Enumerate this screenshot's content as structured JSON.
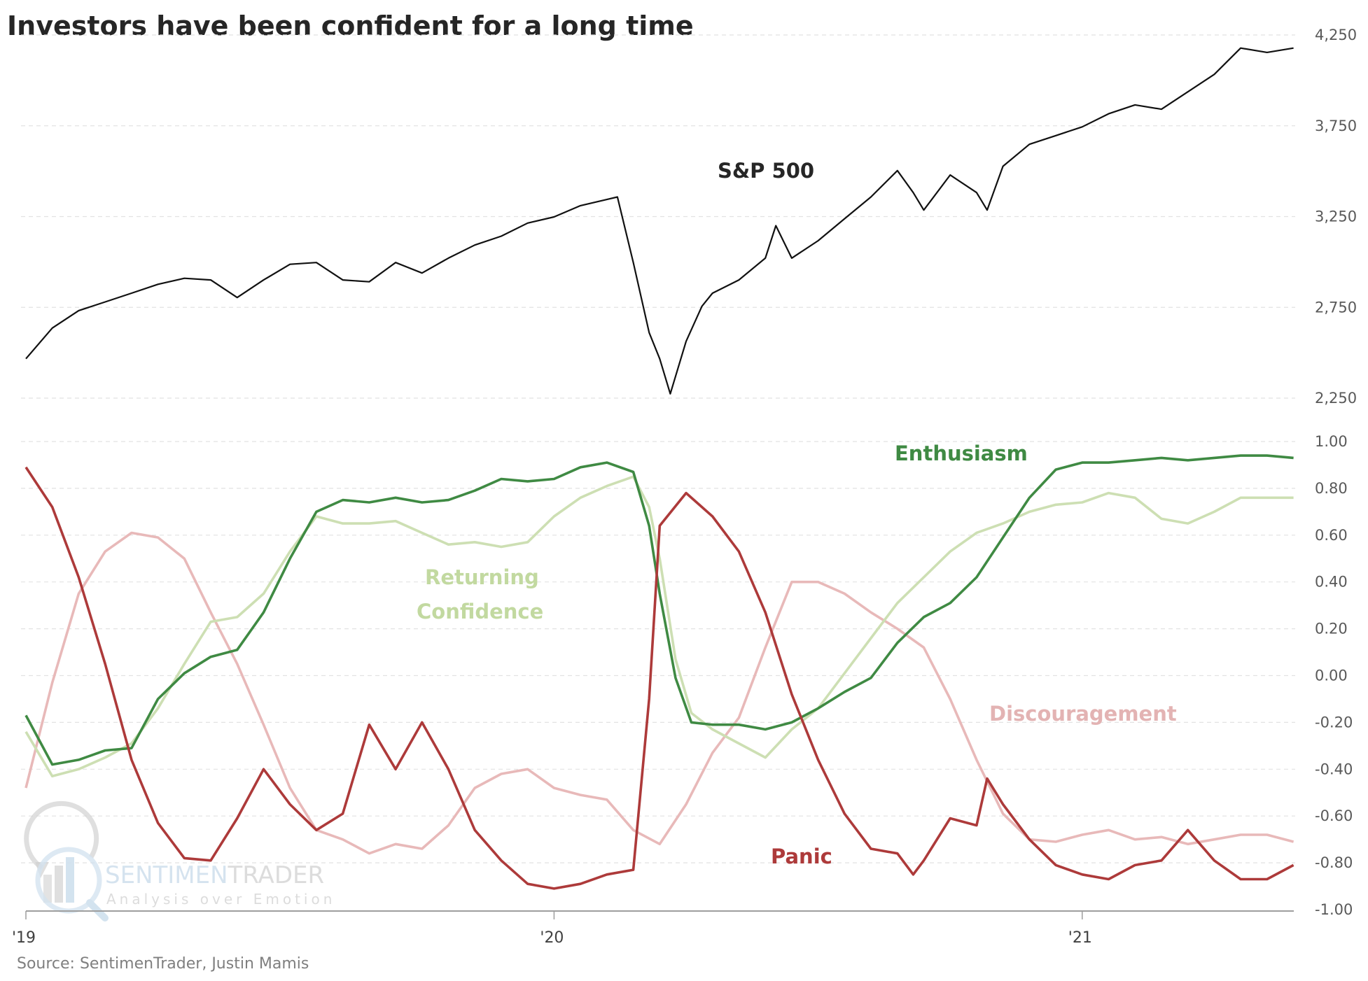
{
  "chart_data": [
    {
      "type": "line",
      "title": "Investors have been confident for a long time",
      "panel": "top",
      "ylabel": "",
      "y_axis_side": "right",
      "ylim": [
        2250,
        4250
      ],
      "yticks": [
        4250,
        3750,
        3250,
        2750,
        2250
      ],
      "ytick_labels": [
        "4,250",
        "3,750",
        "3,250",
        "2,750",
        "2,250"
      ],
      "grid": true,
      "x_unit": "years since Jan 2019",
      "series": [
        {
          "name": "S&P 500",
          "label": "S&P 500",
          "color": "#111111",
          "points": [
            [
              0,
              2467
            ],
            [
              0.05,
              2636
            ],
            [
              0.1,
              2732
            ],
            [
              0.15,
              2780
            ],
            [
              0.2,
              2828
            ],
            [
              0.25,
              2877
            ],
            [
              0.3,
              2910
            ],
            [
              0.35,
              2901
            ],
            [
              0.4,
              2804
            ],
            [
              0.45,
              2901
            ],
            [
              0.5,
              2987
            ],
            [
              0.55,
              2997
            ],
            [
              0.6,
              2901
            ],
            [
              0.65,
              2891
            ],
            [
              0.7,
              2997
            ],
            [
              0.75,
              2939
            ],
            [
              0.8,
              3021
            ],
            [
              0.85,
              3093
            ],
            [
              0.9,
              3142
            ],
            [
              0.95,
              3214
            ],
            [
              1.0,
              3248
            ],
            [
              1.05,
              3310
            ],
            [
              1.1,
              3344
            ],
            [
              1.12,
              3358
            ],
            [
              1.15,
              2997
            ],
            [
              1.18,
              2611
            ],
            [
              1.2,
              2467
            ],
            [
              1.22,
              2274
            ],
            [
              1.25,
              2563
            ],
            [
              1.28,
              2756
            ],
            [
              1.3,
              2828
            ],
            [
              1.35,
              2901
            ],
            [
              1.4,
              3021
            ],
            [
              1.42,
              3200
            ],
            [
              1.45,
              3021
            ],
            [
              1.5,
              3117
            ],
            [
              1.55,
              3238
            ],
            [
              1.6,
              3358
            ],
            [
              1.65,
              3503
            ],
            [
              1.68,
              3382
            ],
            [
              1.7,
              3286
            ],
            [
              1.75,
              3479
            ],
            [
              1.8,
              3382
            ],
            [
              1.82,
              3286
            ],
            [
              1.85,
              3527
            ],
            [
              1.9,
              3648
            ],
            [
              1.95,
              3696
            ],
            [
              2.0,
              3744
            ],
            [
              2.05,
              3816
            ],
            [
              2.1,
              3865
            ],
            [
              2.15,
              3841
            ],
            [
              2.2,
              3937
            ],
            [
              2.25,
              4033
            ],
            [
              2.3,
              4178
            ],
            [
              2.35,
              4154
            ],
            [
              2.4,
              4178
            ]
          ]
        }
      ]
    },
    {
      "type": "line",
      "panel": "bottom",
      "y_axis_side": "right",
      "ylim": [
        -1.0,
        1.0
      ],
      "yticks": [
        1.0,
        0.8,
        0.6,
        0.4,
        0.2,
        0.0,
        -0.2,
        -0.4,
        -0.6,
        -0.8,
        -1.0
      ],
      "ytick_labels": [
        "1.00",
        "0.80",
        "0.60",
        "0.40",
        "0.20",
        "0.00",
        "-0.20",
        "-0.40",
        "-0.60",
        "-0.80",
        "-1.00"
      ],
      "grid": true,
      "x_unit": "years since Jan 2019",
      "xlim": [
        0,
        2.4
      ],
      "xticks": [
        0,
        1,
        2
      ],
      "xtick_labels": [
        "'19",
        "'20",
        "'21"
      ],
      "series": [
        {
          "name": "Enthusiasm",
          "label": "Enthusiasm",
          "color": "#3f8a43",
          "points": [
            [
              0,
              -0.17
            ],
            [
              0.05,
              -0.38
            ],
            [
              0.1,
              -0.36
            ],
            [
              0.15,
              -0.32
            ],
            [
              0.2,
              -0.31
            ],
            [
              0.25,
              -0.1
            ],
            [
              0.3,
              0.01
            ],
            [
              0.35,
              0.08
            ],
            [
              0.4,
              0.11
            ],
            [
              0.45,
              0.27
            ],
            [
              0.5,
              0.5
            ],
            [
              0.55,
              0.7
            ],
            [
              0.6,
              0.75
            ],
            [
              0.65,
              0.74
            ],
            [
              0.7,
              0.76
            ],
            [
              0.75,
              0.74
            ],
            [
              0.8,
              0.75
            ],
            [
              0.85,
              0.79
            ],
            [
              0.9,
              0.84
            ],
            [
              0.95,
              0.83
            ],
            [
              1.0,
              0.84
            ],
            [
              1.05,
              0.89
            ],
            [
              1.1,
              0.91
            ],
            [
              1.15,
              0.87
            ],
            [
              1.18,
              0.64
            ],
            [
              1.2,
              0.35
            ],
            [
              1.23,
              -0.01
            ],
            [
              1.26,
              -0.2
            ],
            [
              1.3,
              -0.21
            ],
            [
              1.35,
              -0.21
            ],
            [
              1.4,
              -0.23
            ],
            [
              1.45,
              -0.2
            ],
            [
              1.5,
              -0.14
            ],
            [
              1.55,
              -0.07
            ],
            [
              1.6,
              -0.01
            ],
            [
              1.65,
              0.14
            ],
            [
              1.7,
              0.25
            ],
            [
              1.75,
              0.31
            ],
            [
              1.8,
              0.42
            ],
            [
              1.85,
              0.59
            ],
            [
              1.9,
              0.76
            ],
            [
              1.95,
              0.88
            ],
            [
              2.0,
              0.91
            ],
            [
              2.05,
              0.91
            ],
            [
              2.1,
              0.92
            ],
            [
              2.15,
              0.93
            ],
            [
              2.2,
              0.92
            ],
            [
              2.25,
              0.93
            ],
            [
              2.3,
              0.94
            ],
            [
              2.35,
              0.94
            ],
            [
              2.4,
              0.93
            ]
          ]
        },
        {
          "name": "Returning Confidence",
          "label": [
            "Returning",
            "Confidence"
          ],
          "color": "#cddfb3",
          "points": [
            [
              0,
              -0.24
            ],
            [
              0.05,
              -0.43
            ],
            [
              0.1,
              -0.4
            ],
            [
              0.15,
              -0.35
            ],
            [
              0.2,
              -0.29
            ],
            [
              0.25,
              -0.14
            ],
            [
              0.3,
              0.05
            ],
            [
              0.35,
              0.23
            ],
            [
              0.4,
              0.25
            ],
            [
              0.45,
              0.35
            ],
            [
              0.5,
              0.53
            ],
            [
              0.55,
              0.68
            ],
            [
              0.6,
              0.65
            ],
            [
              0.65,
              0.65
            ],
            [
              0.7,
              0.66
            ],
            [
              0.75,
              0.61
            ],
            [
              0.8,
              0.56
            ],
            [
              0.85,
              0.57
            ],
            [
              0.9,
              0.55
            ],
            [
              0.95,
              0.57
            ],
            [
              1.0,
              0.68
            ],
            [
              1.05,
              0.76
            ],
            [
              1.1,
              0.81
            ],
            [
              1.15,
              0.85
            ],
            [
              1.18,
              0.72
            ],
            [
              1.2,
              0.5
            ],
            [
              1.23,
              0.07
            ],
            [
              1.26,
              -0.16
            ],
            [
              1.3,
              -0.23
            ],
            [
              1.35,
              -0.29
            ],
            [
              1.4,
              -0.35
            ],
            [
              1.45,
              -0.23
            ],
            [
              1.5,
              -0.14
            ],
            [
              1.55,
              0.01
            ],
            [
              1.6,
              0.16
            ],
            [
              1.65,
              0.31
            ],
            [
              1.7,
              0.42
            ],
            [
              1.75,
              0.53
            ],
            [
              1.8,
              0.61
            ],
            [
              1.85,
              0.65
            ],
            [
              1.9,
              0.7
            ],
            [
              1.95,
              0.73
            ],
            [
              2.0,
              0.74
            ],
            [
              2.05,
              0.78
            ],
            [
              2.1,
              0.76
            ],
            [
              2.15,
              0.67
            ],
            [
              2.2,
              0.65
            ],
            [
              2.25,
              0.7
            ],
            [
              2.3,
              0.76
            ],
            [
              2.35,
              0.76
            ],
            [
              2.4,
              0.76
            ]
          ]
        },
        {
          "name": "Discouragement",
          "label": "Discouragement",
          "color": "#e8b9b9",
          "points": [
            [
              0,
              -0.48
            ],
            [
              0.05,
              -0.03
            ],
            [
              0.1,
              0.35
            ],
            [
              0.15,
              0.53
            ],
            [
              0.2,
              0.61
            ],
            [
              0.25,
              0.59
            ],
            [
              0.3,
              0.5
            ],
            [
              0.35,
              0.27
            ],
            [
              0.4,
              0.05
            ],
            [
              0.45,
              -0.21
            ],
            [
              0.5,
              -0.48
            ],
            [
              0.55,
              -0.66
            ],
            [
              0.6,
              -0.7
            ],
            [
              0.65,
              -0.76
            ],
            [
              0.7,
              -0.72
            ],
            [
              0.75,
              -0.74
            ],
            [
              0.8,
              -0.64
            ],
            [
              0.85,
              -0.48
            ],
            [
              0.9,
              -0.42
            ],
            [
              0.95,
              -0.4
            ],
            [
              1.0,
              -0.48
            ],
            [
              1.05,
              -0.51
            ],
            [
              1.1,
              -0.53
            ],
            [
              1.15,
              -0.66
            ],
            [
              1.2,
              -0.72
            ],
            [
              1.25,
              -0.55
            ],
            [
              1.3,
              -0.33
            ],
            [
              1.35,
              -0.18
            ],
            [
              1.4,
              0.12
            ],
            [
              1.45,
              0.4
            ],
            [
              1.5,
              0.4
            ],
            [
              1.55,
              0.35
            ],
            [
              1.6,
              0.27
            ],
            [
              1.65,
              0.2
            ],
            [
              1.7,
              0.12
            ],
            [
              1.75,
              -0.1
            ],
            [
              1.8,
              -0.36
            ],
            [
              1.85,
              -0.59
            ],
            [
              1.9,
              -0.7
            ],
            [
              1.95,
              -0.71
            ],
            [
              2.0,
              -0.68
            ],
            [
              2.05,
              -0.66
            ],
            [
              2.1,
              -0.7
            ],
            [
              2.15,
              -0.69
            ],
            [
              2.2,
              -0.72
            ],
            [
              2.25,
              -0.7
            ],
            [
              2.3,
              -0.68
            ],
            [
              2.35,
              -0.68
            ],
            [
              2.4,
              -0.71
            ]
          ]
        },
        {
          "name": "Panic",
          "label": "Panic",
          "color": "#ad3a3a",
          "points": [
            [
              0,
              0.89
            ],
            [
              0.05,
              0.72
            ],
            [
              0.1,
              0.42
            ],
            [
              0.15,
              0.05
            ],
            [
              0.2,
              -0.36
            ],
            [
              0.25,
              -0.63
            ],
            [
              0.3,
              -0.78
            ],
            [
              0.35,
              -0.79
            ],
            [
              0.4,
              -0.61
            ],
            [
              0.45,
              -0.4
            ],
            [
              0.5,
              -0.55
            ],
            [
              0.55,
              -0.66
            ],
            [
              0.6,
              -0.59
            ],
            [
              0.65,
              -0.21
            ],
            [
              0.7,
              -0.4
            ],
            [
              0.75,
              -0.2
            ],
            [
              0.8,
              -0.4
            ],
            [
              0.85,
              -0.66
            ],
            [
              0.9,
              -0.79
            ],
            [
              0.95,
              -0.89
            ],
            [
              1.0,
              -0.91
            ],
            [
              1.05,
              -0.89
            ],
            [
              1.1,
              -0.85
            ],
            [
              1.15,
              -0.83
            ],
            [
              1.18,
              -0.1
            ],
            [
              1.2,
              0.64
            ],
            [
              1.25,
              0.78
            ],
            [
              1.3,
              0.68
            ],
            [
              1.35,
              0.53
            ],
            [
              1.4,
              0.27
            ],
            [
              1.45,
              -0.08
            ],
            [
              1.5,
              -0.36
            ],
            [
              1.55,
              -0.59
            ],
            [
              1.6,
              -0.74
            ],
            [
              1.65,
              -0.76
            ],
            [
              1.68,
              -0.85
            ],
            [
              1.7,
              -0.79
            ],
            [
              1.75,
              -0.61
            ],
            [
              1.8,
              -0.64
            ],
            [
              1.82,
              -0.44
            ],
            [
              1.85,
              -0.55
            ],
            [
              1.9,
              -0.7
            ],
            [
              1.95,
              -0.81
            ],
            [
              2.0,
              -0.85
            ],
            [
              2.05,
              -0.87
            ],
            [
              2.1,
              -0.81
            ],
            [
              2.15,
              -0.79
            ],
            [
              2.2,
              -0.66
            ],
            [
              2.25,
              -0.79
            ],
            [
              2.3,
              -0.87
            ],
            [
              2.35,
              -0.87
            ],
            [
              2.4,
              -0.81
            ]
          ]
        }
      ]
    }
  ],
  "title": "Investors have been confident for a long time",
  "source": "Source: SentimenTrader, Justin Mamis",
  "watermark": {
    "brand_part1": "SENTIMEN",
    "brand_part2": "TRADER",
    "tagline": "Analysis over Emotion"
  }
}
